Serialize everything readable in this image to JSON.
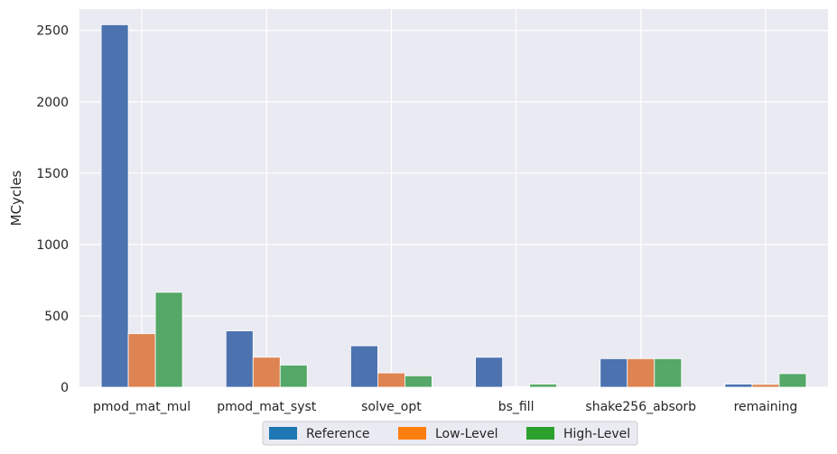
{
  "chart_data": {
    "type": "bar",
    "title": "",
    "xlabel": "",
    "ylabel": "MCycles",
    "ylim": [
      0,
      2650
    ],
    "yticks": [
      0,
      500,
      1000,
      1500,
      2000,
      2500
    ],
    "grid": true,
    "legend_position": "bottom-center",
    "categories": [
      "pmod_mat_mul",
      "pmod_mat_syst",
      "solve_opt",
      "bs_fill",
      "shake256_absorb",
      "remaining"
    ],
    "series": [
      {
        "name": "Reference",
        "bar_color": "#4c72b0",
        "legend_color": "#1f77b4",
        "values": [
          2540,
          395,
          290,
          210,
          200,
          22
        ]
      },
      {
        "name": "Low-Level",
        "bar_color": "#dd8452",
        "legend_color": "#ff7f0e",
        "values": [
          375,
          210,
          100,
          5,
          200,
          20
        ]
      },
      {
        "name": "High-Level",
        "bar_color": "#55a868",
        "legend_color": "#2ca02c",
        "values": [
          665,
          155,
          80,
          22,
          200,
          95
        ]
      }
    ],
    "plot_background": "#eaeaf2",
    "grid_color": "#ffffff"
  }
}
